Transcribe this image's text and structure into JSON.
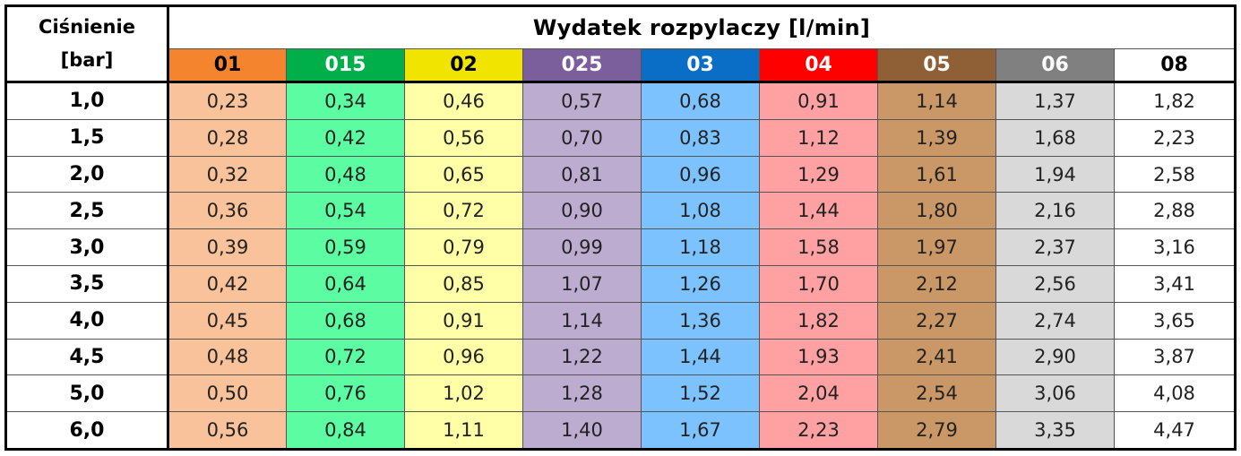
{
  "table": {
    "pressure_header_line1": "Ciśnienie",
    "pressure_header_line2": "[bar]",
    "title": "Wydatek rozpylaczy  [l/min]",
    "nozzles": [
      {
        "code": "01",
        "header_bg": "#f5842e",
        "header_fg": "#000000",
        "cell_bg": "#f9c29a"
      },
      {
        "code": "015",
        "header_bg": "#00ae4a",
        "header_fg": "#ffffff",
        "cell_bg": "#5cfca2"
      },
      {
        "code": "02",
        "header_bg": "#f1e400",
        "header_fg": "#000000",
        "cell_bg": "#ffffa8"
      },
      {
        "code": "025",
        "header_bg": "#7b5f9c",
        "header_fg": "#ffffff",
        "cell_bg": "#bcaccf"
      },
      {
        "code": "03",
        "header_bg": "#0a6ec7",
        "header_fg": "#ffffff",
        "cell_bg": "#7cc2ff"
      },
      {
        "code": "04",
        "header_bg": "#fe0000",
        "header_fg": "#ffffff",
        "cell_bg": "#ffa1a2"
      },
      {
        "code": "05",
        "header_bg": "#8f5f35",
        "header_fg": "#ffffff",
        "cell_bg": "#c99866"
      },
      {
        "code": "06",
        "header_bg": "#808080",
        "header_fg": "#ffffff",
        "cell_bg": "#d9d9d9"
      },
      {
        "code": "08",
        "header_bg": "#ffffff",
        "header_fg": "#000000",
        "cell_bg": "#ffffff"
      }
    ],
    "rows": [
      {
        "pressure": "1,0",
        "values": [
          "0,23",
          "0,34",
          "0,46",
          "0,57",
          "0,68",
          "0,91",
          "1,14",
          "1,37",
          "1,82"
        ]
      },
      {
        "pressure": "1,5",
        "values": [
          "0,28",
          "0,42",
          "0,56",
          "0,70",
          "0,83",
          "1,12",
          "1,39",
          "1,68",
          "2,23"
        ]
      },
      {
        "pressure": "2,0",
        "values": [
          "0,32",
          "0,48",
          "0,65",
          "0,81",
          "0,96",
          "1,29",
          "1,61",
          "1,94",
          "2,58"
        ]
      },
      {
        "pressure": "2,5",
        "values": [
          "0,36",
          "0,54",
          "0,72",
          "0,90",
          "1,08",
          "1,44",
          "1,80",
          "2,16",
          "2,88"
        ]
      },
      {
        "pressure": "3,0",
        "values": [
          "0,39",
          "0,59",
          "0,79",
          "0,99",
          "1,18",
          "1,58",
          "1,97",
          "2,37",
          "3,16"
        ]
      },
      {
        "pressure": "3,5",
        "values": [
          "0,42",
          "0,64",
          "0,85",
          "1,07",
          "1,26",
          "1,70",
          "2,12",
          "2,56",
          "3,41"
        ]
      },
      {
        "pressure": "4,0",
        "values": [
          "0,45",
          "0,68",
          "0,91",
          "1,14",
          "1,36",
          "1,82",
          "2,27",
          "2,74",
          "3,65"
        ]
      },
      {
        "pressure": "4,5",
        "values": [
          "0,48",
          "0,72",
          "0,96",
          "1,22",
          "1,44",
          "1,93",
          "2,41",
          "2,90",
          "3,87"
        ]
      },
      {
        "pressure": "5,0",
        "values": [
          "0,50",
          "0,76",
          "1,02",
          "1,28",
          "1,52",
          "2,04",
          "2,54",
          "3,06",
          "4,08"
        ]
      },
      {
        "pressure": "6,0",
        "values": [
          "0,56",
          "0,84",
          "1,11",
          "1,40",
          "1,67",
          "2,23",
          "2,79",
          "3,35",
          "4,47"
        ]
      }
    ]
  }
}
